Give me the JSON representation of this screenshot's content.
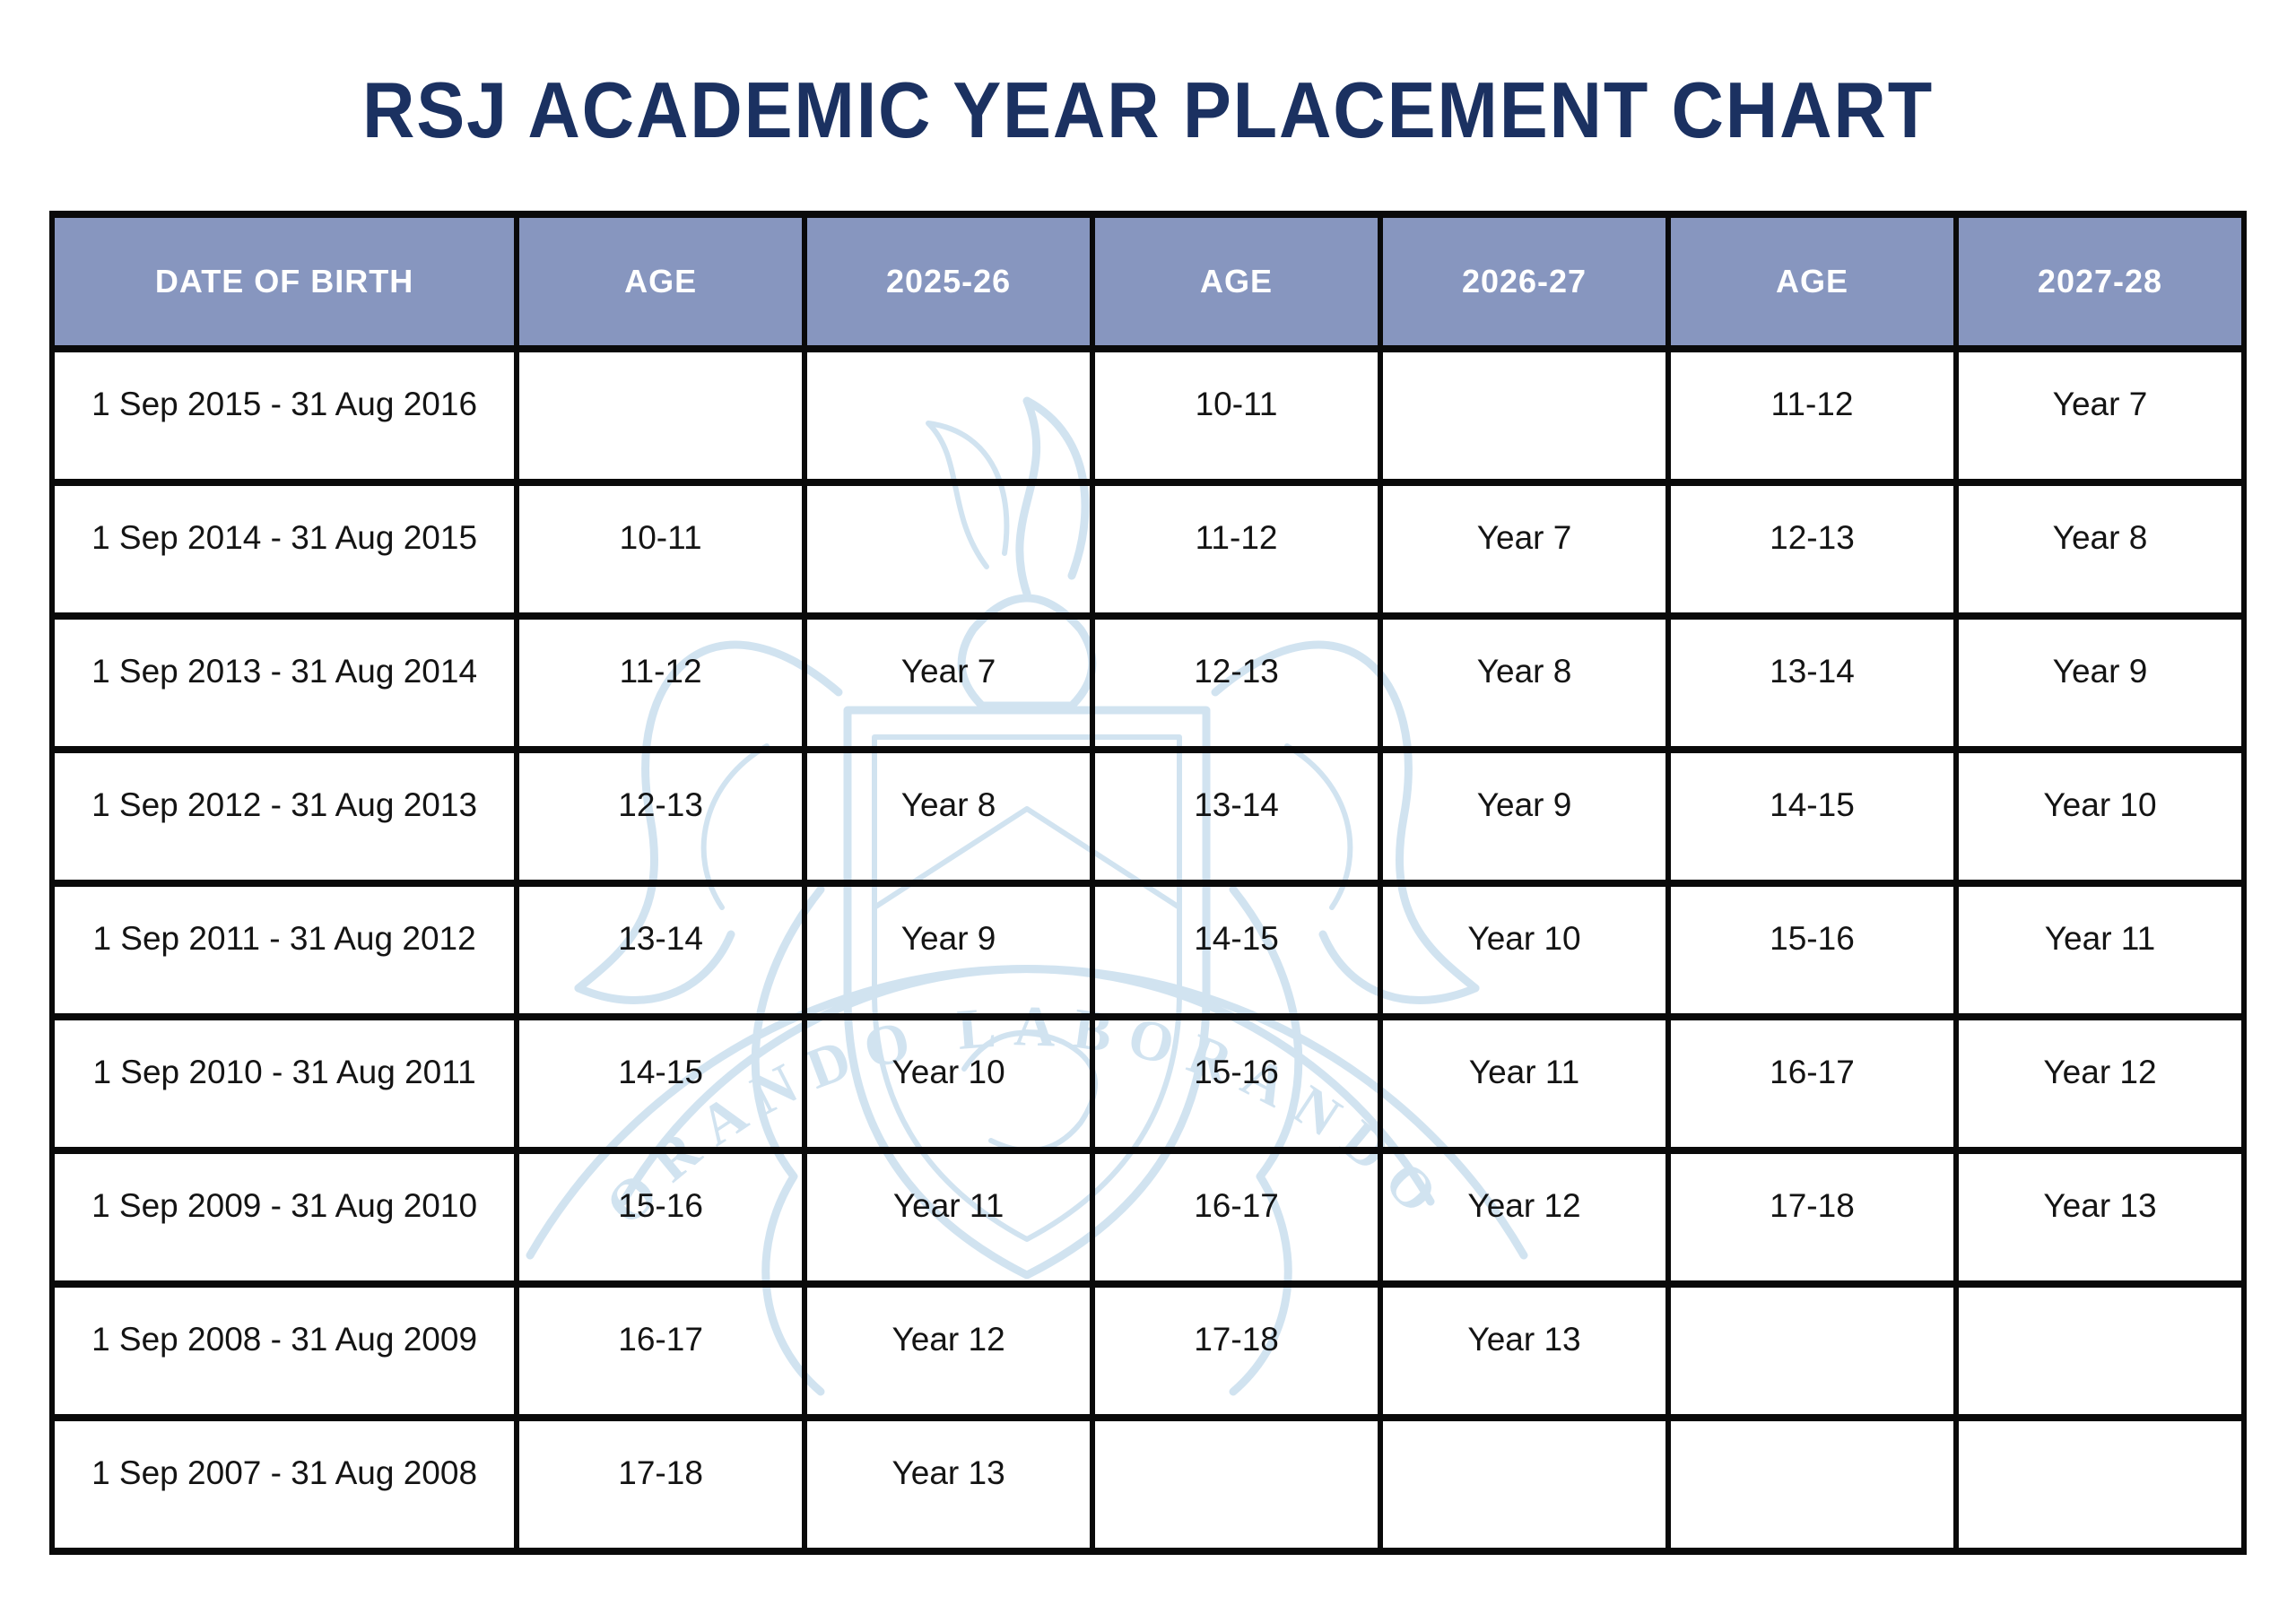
{
  "page": {
    "title": "RSJ ACADEMIC YEAR PLACEMENT CHART"
  },
  "colors": {
    "title_color": "#1b3161",
    "header_bg": "#8796bf",
    "header_text": "#ffffff",
    "border": "#0a0a0a",
    "cell_text": "#141414",
    "watermark": "#cfe2f0",
    "page_bg": "#ffffff"
  },
  "watermark": {
    "name": "school-crest",
    "motto": "ORANDO LABORANDO"
  },
  "table": {
    "headers": [
      "DATE OF BIRTH",
      "AGE",
      "2025-26",
      "AGE",
      "2026-27",
      "AGE",
      "2027-28"
    ],
    "rows": [
      [
        "1 Sep 2015 - 31 Aug 2016",
        "",
        "",
        "10-11",
        "",
        "11-12",
        "Year 7"
      ],
      [
        "1 Sep 2014 - 31 Aug 2015",
        "10-11",
        "",
        "11-12",
        "Year 7",
        "12-13",
        "Year 8"
      ],
      [
        "1 Sep 2013 - 31 Aug 2014",
        "11-12",
        "Year 7",
        "12-13",
        "Year 8",
        "13-14",
        "Year 9"
      ],
      [
        "1 Sep 2012 - 31 Aug 2013",
        "12-13",
        "Year 8",
        "13-14",
        "Year 9",
        "14-15",
        "Year 10"
      ],
      [
        "1 Sep 2011 - 31 Aug 2012",
        "13-14",
        "Year 9",
        "14-15",
        "Year 10",
        "15-16",
        "Year 11"
      ],
      [
        "1 Sep 2010 - 31 Aug 2011",
        "14-15",
        "Year 10",
        "15-16",
        "Year 11",
        "16-17",
        "Year 12"
      ],
      [
        "1 Sep 2009 - 31 Aug 2010",
        "15-16",
        "Year 11",
        "16-17",
        "Year 12",
        "17-18",
        "Year 13"
      ],
      [
        "1 Sep 2008 - 31 Aug 2009",
        "16-17",
        "Year 12",
        "17-18",
        "Year 13",
        "",
        ""
      ],
      [
        "1 Sep 2007 - 31 Aug 2008",
        "17-18",
        "Year 13",
        "",
        "",
        "",
        ""
      ]
    ]
  }
}
